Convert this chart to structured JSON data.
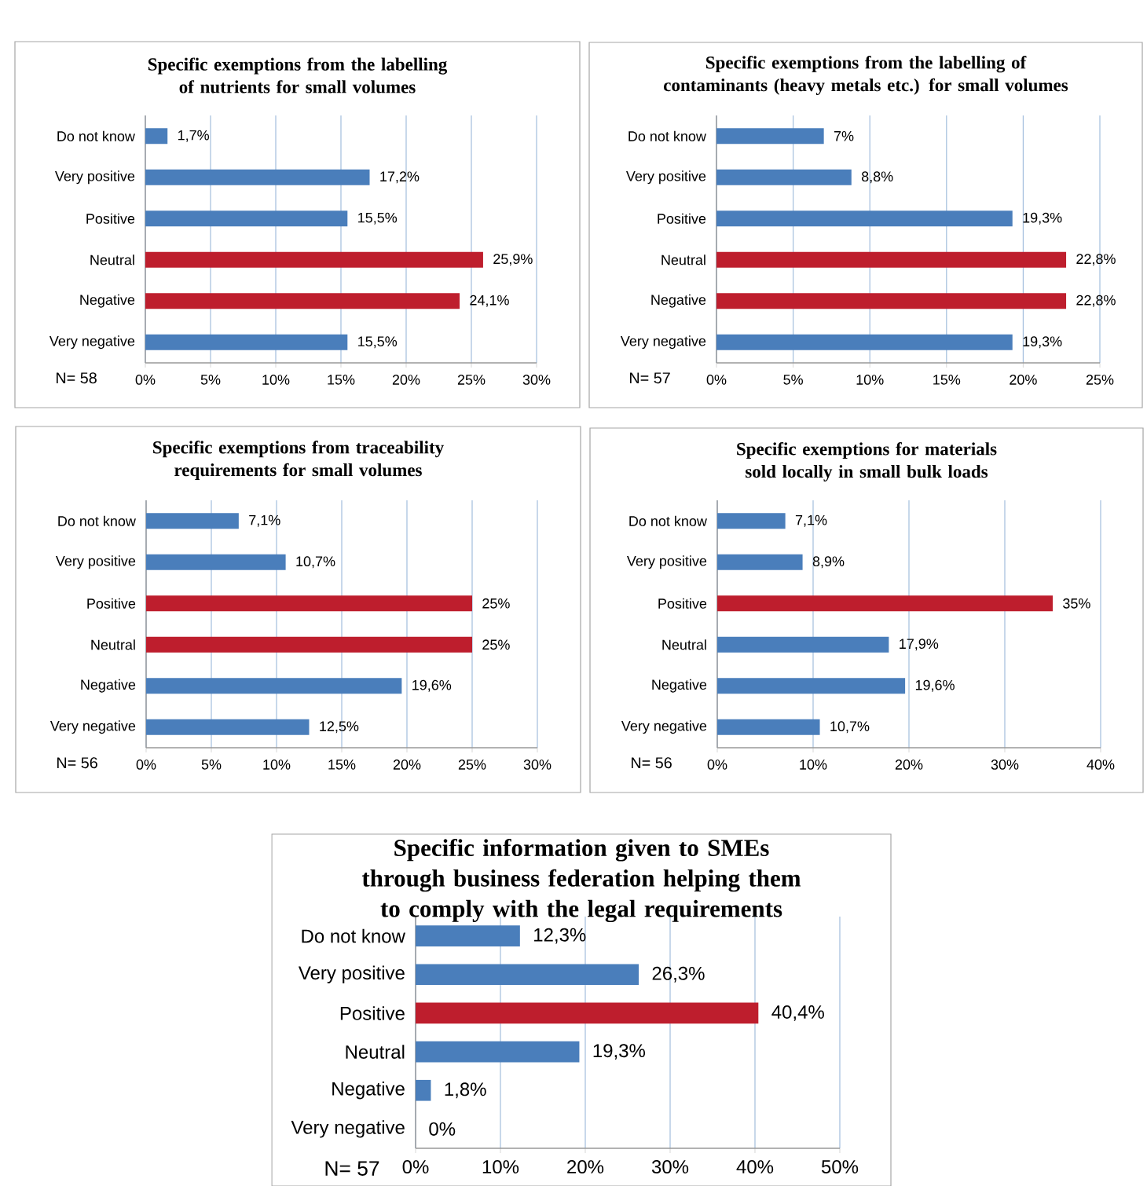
{
  "chart_data": [
    {
      "type": "bar",
      "orientation": "horizontal",
      "title": "Specific exemptions from the labelling of nutrients for small volumes",
      "categories": [
        "Do not know",
        "Very positive",
        "Positive",
        "Neutral",
        "Negative",
        "Very negative"
      ],
      "values": [
        1.7,
        17.2,
        15.5,
        25.9,
        24.1,
        15.5
      ],
      "value_labels": [
        "1,7%",
        "17,2%",
        "15,5%",
        "25,9%",
        "24,1%",
        "15,5%"
      ],
      "colors": [
        "#4a7ebb",
        "#4a7ebb",
        "#4a7ebb",
        "#be1e2d",
        "#be1e2d",
        "#4a7ebb"
      ],
      "xlim": [
        0,
        30
      ],
      "xticks": [
        {
          "value": 0,
          "label": "0%"
        },
        {
          "value": 5,
          "label": "5%"
        },
        {
          "value": 10,
          "label": "10%"
        },
        {
          "value": 15,
          "label": "15%"
        },
        {
          "value": 20,
          "label": "20%"
        },
        {
          "value": 25,
          "label": "25%"
        },
        {
          "value": 30,
          "label": "30%"
        }
      ],
      "grid": "x",
      "annotations": [
        "N= 58"
      ]
    },
    {
      "type": "bar",
      "orientation": "horizontal",
      "title": "Specific exemptions from the labelling of contaminants (heavy metals etc.) for small volumes",
      "categories": [
        "Do not know",
        "Very positive",
        "Positive",
        "Neutral",
        "Negative",
        "Very negative"
      ],
      "values": [
        7,
        8.8,
        19.3,
        22.8,
        22.8,
        19.3
      ],
      "value_labels": [
        "7%",
        "8,8%",
        "19,3%",
        "22,8%",
        "22,8%",
        "19,3%"
      ],
      "colors": [
        "#4a7ebb",
        "#4a7ebb",
        "#4a7ebb",
        "#be1e2d",
        "#be1e2d",
        "#4a7ebb"
      ],
      "xlim": [
        0,
        25
      ],
      "xticks": [
        {
          "value": 0,
          "label": "0%"
        },
        {
          "value": 5,
          "label": "5%"
        },
        {
          "value": 10,
          "label": "10%"
        },
        {
          "value": 15,
          "label": "15%"
        },
        {
          "value": 20,
          "label": "20%"
        },
        {
          "value": 25,
          "label": "25%"
        }
      ],
      "grid": "x",
      "annotations": [
        "N= 57"
      ]
    },
    {
      "type": "bar",
      "orientation": "horizontal",
      "title": "Specific exemptions from traceability requirements for small volumes",
      "categories": [
        "Do not know",
        "Very positive",
        "Positive",
        "Neutral",
        "Negative",
        "Very negative"
      ],
      "values": [
        7.1,
        10.7,
        25,
        25,
        19.6,
        12.5
      ],
      "value_labels": [
        "7,1%",
        "10,7%",
        "25%",
        "25%",
        "19,6%",
        "12,5%"
      ],
      "colors": [
        "#4a7ebb",
        "#4a7ebb",
        "#be1e2d",
        "#be1e2d",
        "#4a7ebb",
        "#4a7ebb"
      ],
      "xlim": [
        0,
        30
      ],
      "xticks": [
        {
          "value": 0,
          "label": "0%"
        },
        {
          "value": 5,
          "label": "5%"
        },
        {
          "value": 10,
          "label": "10%"
        },
        {
          "value": 15,
          "label": "15%"
        },
        {
          "value": 20,
          "label": "20%"
        },
        {
          "value": 25,
          "label": "25%"
        },
        {
          "value": 30,
          "label": "30%"
        }
      ],
      "grid": "x",
      "annotations": [
        "N= 56"
      ]
    },
    {
      "type": "bar",
      "orientation": "horizontal",
      "title": "Specific exemptions for materials sold locally in small bulk loads",
      "categories": [
        "Do not know",
        "Very positive",
        "Positive",
        "Neutral",
        "Negative",
        "Very negative"
      ],
      "values": [
        7.1,
        8.9,
        35,
        17.9,
        19.6,
        10.7
      ],
      "value_labels": [
        "7,1%",
        "8,9%",
        "35%",
        "17,9%",
        "19,6%",
        "10,7%"
      ],
      "colors": [
        "#4a7ebb",
        "#4a7ebb",
        "#be1e2d",
        "#4a7ebb",
        "#4a7ebb",
        "#4a7ebb"
      ],
      "xlim": [
        0,
        40
      ],
      "xticks": [
        {
          "value": 0,
          "label": "0%"
        },
        {
          "value": 10,
          "label": "10%"
        },
        {
          "value": 20,
          "label": "20%"
        },
        {
          "value": 30,
          "label": "30%"
        },
        {
          "value": 40,
          "label": "40%"
        }
      ],
      "grid": "x",
      "annotations": [
        "N= 56"
      ]
    },
    {
      "type": "bar",
      "orientation": "horizontal",
      "title": "Specific information given to SMEs through business federation helping them to comply with the legal requirements",
      "categories": [
        "Do not know",
        "Very positive",
        "Positive",
        "Neutral",
        "Negative",
        "Very negative"
      ],
      "values": [
        12.3,
        26.3,
        40.4,
        19.3,
        1.8,
        0
      ],
      "value_labels": [
        "12,3%",
        "26,3%",
        "40,4%",
        "19,3%",
        "1,8%",
        "0%"
      ],
      "colors": [
        "#4a7ebb",
        "#4a7ebb",
        "#be1e2d",
        "#4a7ebb",
        "#4a7ebb",
        "#4a7ebb"
      ],
      "xlim": [
        0,
        50
      ],
      "xticks": [
        {
          "value": 0,
          "label": "0%"
        },
        {
          "value": 10,
          "label": "10%"
        },
        {
          "value": 20,
          "label": "20%"
        },
        {
          "value": 30,
          "label": "30%"
        },
        {
          "value": 40,
          "label": "40%"
        },
        {
          "value": 50,
          "label": "50%"
        }
      ],
      "grid": "x",
      "annotations": [
        "N= 57"
      ]
    }
  ]
}
